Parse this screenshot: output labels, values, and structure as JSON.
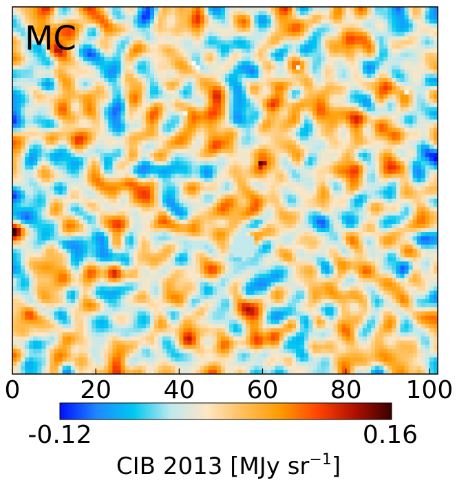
{
  "chart_data": {
    "type": "heatmap",
    "panel_label": "MC",
    "grid_cols": 102,
    "grid_rows": 88,
    "xlim": [
      0,
      102
    ],
    "x_ticks": [
      0,
      20,
      40,
      60,
      80,
      100
    ],
    "x_tick_labels": [
      "0",
      "20",
      "40",
      "60",
      "80",
      "100"
    ],
    "colorbar": {
      "min": -0.12,
      "max": 0.16,
      "min_label": "-0.12",
      "max_label": "0.16",
      "label_main": "CIB 2013 [MJy sr",
      "label_sup": "−1",
      "label_close": "]",
      "colormap": [
        "#0010ff",
        "#1e88ff",
        "#00c8f0",
        "#bfe9ee",
        "#fde6c4",
        "#ffbe55",
        "#ff9a00",
        "#ff4400",
        "#b01000",
        "#3a0000"
      ]
    },
    "masked_pixels": [
      [
        43,
        13
      ],
      [
        44,
        14
      ],
      [
        68,
        14
      ],
      [
        94,
        20
      ],
      [
        41,
        25
      ]
    ],
    "hot_spot": [
      59,
      37
    ],
    "smooth_patch": [
      55,
      57
    ]
  }
}
